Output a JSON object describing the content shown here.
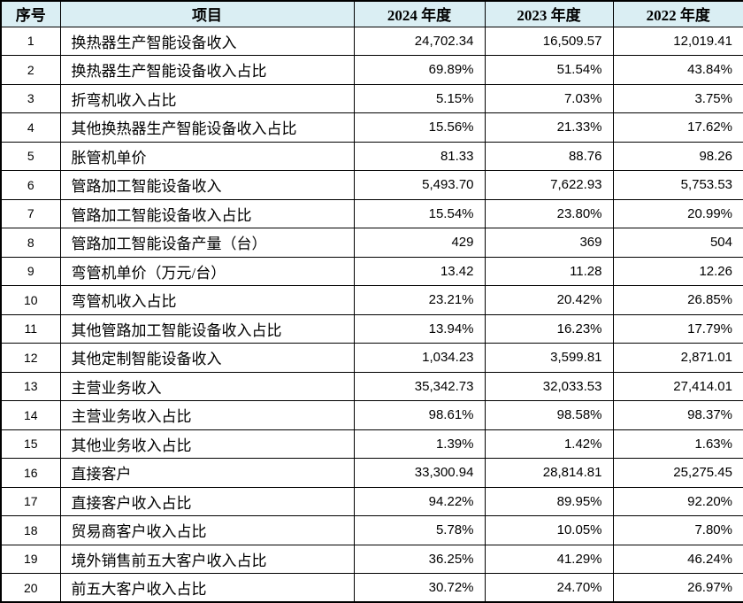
{
  "colors": {
    "header_bg": "#daeef3",
    "border": "#000000",
    "text": "#000000"
  },
  "table": {
    "columns": [
      "序号",
      "项目",
      "2024 年度",
      "2023 年度",
      "2022 年度"
    ],
    "rows": [
      {
        "no": "1",
        "item": "换热器生产智能设备收入",
        "y2024": "24,702.34",
        "y2023": "16,509.57",
        "y2022": "12,019.41"
      },
      {
        "no": "2",
        "item": "换热器生产智能设备收入占比",
        "y2024": "69.89%",
        "y2023": "51.54%",
        "y2022": "43.84%"
      },
      {
        "no": "3",
        "item": "折弯机收入占比",
        "y2024": "5.15%",
        "y2023": "7.03%",
        "y2022": "3.75%"
      },
      {
        "no": "4",
        "item": "其他换热器生产智能设备收入占比",
        "y2024": "15.56%",
        "y2023": "21.33%",
        "y2022": "17.62%"
      },
      {
        "no": "5",
        "item": "胀管机单价",
        "y2024": "81.33",
        "y2023": "88.76",
        "y2022": "98.26"
      },
      {
        "no": "6",
        "item": "管路加工智能设备收入",
        "y2024": "5,493.70",
        "y2023": "7,622.93",
        "y2022": "5,753.53"
      },
      {
        "no": "7",
        "item": "管路加工智能设备收入占比",
        "y2024": "15.54%",
        "y2023": "23.80%",
        "y2022": "20.99%"
      },
      {
        "no": "8",
        "item": "管路加工智能设备产量（台）",
        "y2024": "429",
        "y2023": "369",
        "y2022": "504"
      },
      {
        "no": "9",
        "item": "弯管机单价（万元/台）",
        "y2024": "13.42",
        "y2023": "11.28",
        "y2022": "12.26"
      },
      {
        "no": "10",
        "item": "弯管机收入占比",
        "y2024": "23.21%",
        "y2023": "20.42%",
        "y2022": "26.85%"
      },
      {
        "no": "11",
        "item": "其他管路加工智能设备收入占比",
        "y2024": "13.94%",
        "y2023": "16.23%",
        "y2022": "17.79%"
      },
      {
        "no": "12",
        "item": "其他定制智能设备收入",
        "y2024": "1,034.23",
        "y2023": "3,599.81",
        "y2022": "2,871.01"
      },
      {
        "no": "13",
        "item": "主营业务收入",
        "y2024": "35,342.73",
        "y2023": "32,033.53",
        "y2022": "27,414.01"
      },
      {
        "no": "14",
        "item": "主营业务收入占比",
        "y2024": "98.61%",
        "y2023": "98.58%",
        "y2022": "98.37%"
      },
      {
        "no": "15",
        "item": "其他业务收入占比",
        "y2024": "1.39%",
        "y2023": "1.42%",
        "y2022": "1.63%"
      },
      {
        "no": "16",
        "item": "直接客户",
        "y2024": "33,300.94",
        "y2023": "28,814.81",
        "y2022": "25,275.45"
      },
      {
        "no": "17",
        "item": "直接客户收入占比",
        "y2024": "94.22%",
        "y2023": "89.95%",
        "y2022": "92.20%"
      },
      {
        "no": "18",
        "item": "贸易商客户收入占比",
        "y2024": "5.78%",
        "y2023": "10.05%",
        "y2022": "7.80%"
      },
      {
        "no": "19",
        "item": "境外销售前五大客户收入占比",
        "y2024": "36.25%",
        "y2023": "41.29%",
        "y2022": "46.24%"
      },
      {
        "no": "20",
        "item": "前五大客户收入占比",
        "y2024": "30.72%",
        "y2023": "24.70%",
        "y2022": "26.97%"
      }
    ]
  }
}
